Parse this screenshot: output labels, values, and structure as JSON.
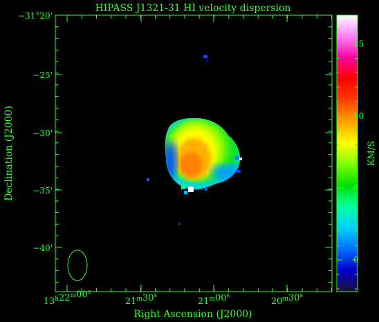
{
  "title": "HIPASS J1321-31   HI velocity dispersion",
  "x_axis": {
    "label": "Right Ascension (J2000)",
    "ticks": [
      {
        "main": "13",
        "sup1": "h",
        "mid": "22",
        "sup2": "m",
        "tail": "00",
        "sup3": "s"
      },
      {
        "main": "21",
        "sup1": "m",
        "mid": "30",
        "sup2": "s",
        "tail": "",
        "sup3": ""
      },
      {
        "main": "21",
        "sup1": "m",
        "mid": "00",
        "sup2": "s",
        "tail": "",
        "sup3": ""
      },
      {
        "main": "20",
        "sup1": "m",
        "mid": "30",
        "sup2": "s",
        "tail": "",
        "sup3": ""
      }
    ]
  },
  "y_axis": {
    "label": "Declination (J2000)",
    "ticks": [
      "−31°20'",
      "−25'",
      "−30'",
      "−35'",
      "−40'"
    ]
  },
  "colorbar": {
    "label": "KM/S",
    "ticks": [
      "15",
      "10",
      "5",
      "0"
    ],
    "min": -2.2,
    "max": 17,
    "colormap": [
      "#20103a",
      "#0000cc",
      "#0070ff",
      "#00d0ff",
      "#00ffa0",
      "#00e000",
      "#80ff00",
      "#ffff00",
      "#ffa000",
      "#ff4000",
      "#ff0000",
      "#ff00a0",
      "#ff80ff",
      "#ffffff"
    ]
  },
  "colors": {
    "axis": "#33ff33",
    "background": "#000000"
  }
}
